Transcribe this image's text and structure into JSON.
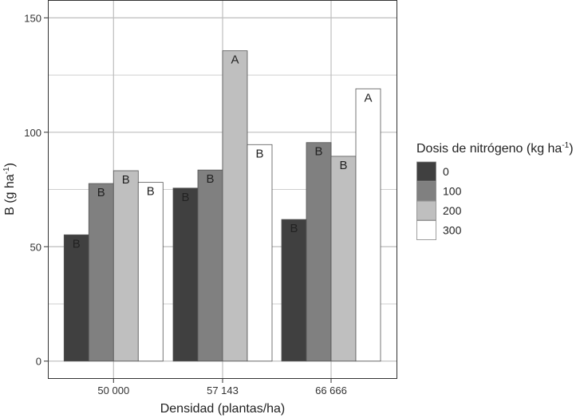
{
  "chart_data": {
    "type": "bar",
    "title": "",
    "xlabel": "Densidad (plantas/ha)",
    "ylabel_main": "B (g ha",
    "ylabel_sup": "-1",
    "ylabel_end": ")",
    "ylim": [
      -15,
      157
    ],
    "yticks": [
      0,
      50,
      100,
      150
    ],
    "grid": true,
    "categories": [
      "50 000",
      "57 143",
      "66 666"
    ],
    "legend": {
      "title_main": "Dosis de nitrógeno (kg ha",
      "title_sup": "-1",
      "title_end": ")",
      "placement": "right"
    },
    "series": [
      {
        "name": "0",
        "color": "#404040",
        "values": [
          55.2,
          75.6,
          61.9
        ],
        "labels": [
          "B",
          "B",
          "B"
        ]
      },
      {
        "name": "100",
        "color": "#808080",
        "values": [
          77.6,
          83.5,
          95.5
        ],
        "labels": [
          "B",
          "B",
          "B"
        ]
      },
      {
        "name": "200",
        "color": "#bfbfbf",
        "values": [
          83.2,
          135.6,
          89.5
        ],
        "labels": [
          "B",
          "A",
          "B"
        ]
      },
      {
        "name": "300",
        "color": "#ffffff",
        "values": [
          78.1,
          94.6,
          119.0
        ],
        "labels": [
          "B",
          "B",
          "A"
        ]
      }
    ]
  }
}
